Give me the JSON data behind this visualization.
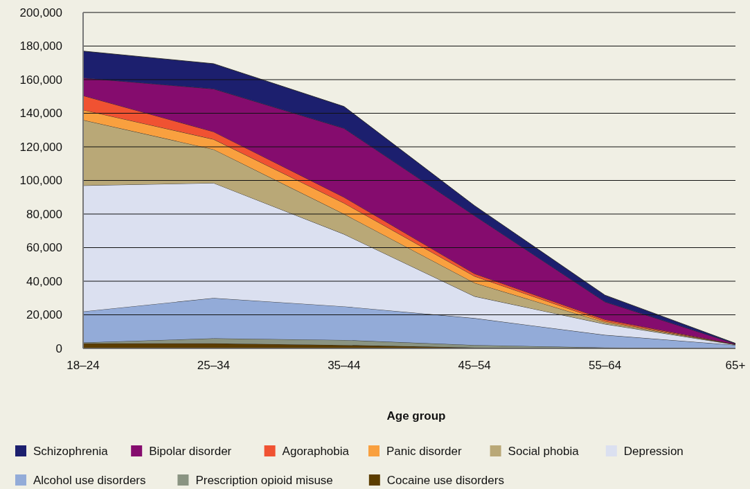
{
  "chart_data": {
    "type": "area",
    "stacked": true,
    "xlabel": "Age group",
    "categories": [
      "18–24",
      "25–34",
      "35–44",
      "45–54",
      "55–64",
      "65+"
    ],
    "series": [
      {
        "name": "Cocaine use disorders",
        "color": "#5c3d00",
        "values": [
          3000,
          3000,
          2000,
          500,
          0,
          0
        ]
      },
      {
        "name": "Prescription opioid misuse",
        "color": "#8a9482",
        "values": [
          500,
          3000,
          3000,
          1500,
          500,
          0
        ]
      },
      {
        "name": "Alcohol use disorders",
        "color": "#93abd8",
        "values": [
          18500,
          24000,
          20000,
          16000,
          7500,
          2000
        ]
      },
      {
        "name": "Depression",
        "color": "#dbe0f0",
        "values": [
          75000,
          68500,
          43000,
          13000,
          6500,
          200
        ]
      },
      {
        "name": "Social phobia",
        "color": "#b9a877",
        "values": [
          39000,
          20000,
          12000,
          8000,
          1000,
          100
        ]
      },
      {
        "name": "Panic disorder",
        "color": "#f9a03f",
        "values": [
          6000,
          6000,
          6500,
          4000,
          700,
          100
        ]
      },
      {
        "name": "Agoraphobia",
        "color": "#f05232",
        "values": [
          8500,
          4500,
          3500,
          1500,
          1000,
          100
        ]
      },
      {
        "name": "Bipolar disorder",
        "color": "#850c6e",
        "values": [
          10500,
          25500,
          41000,
          34500,
          10500,
          300
        ]
      },
      {
        "name": "Schizophrenia",
        "color": "#1c1f6e",
        "values": [
          16000,
          15000,
          13000,
          6000,
          4000,
          200
        ]
      }
    ],
    "ylim": [
      0,
      200000
    ],
    "yticks": [
      0,
      {
        "value": 20000,
        "label": "20,000"
      },
      {
        "value": 40000,
        "label": "40,000"
      },
      {
        "value": 60000,
        "label": "60,000"
      },
      {
        "value": 80000,
        "label": "80,000"
      },
      {
        "value": 100000,
        "label": "100,000"
      },
      {
        "value": 120000,
        "label": "120,000"
      },
      {
        "value": 140000,
        "label": "140,000"
      },
      {
        "value": 160000,
        "label": "160,000"
      },
      {
        "value": 180000,
        "label": "180,000"
      },
      {
        "value": 200000,
        "label": "200,000"
      }
    ],
    "grid": "y",
    "legend": "bottom"
  }
}
